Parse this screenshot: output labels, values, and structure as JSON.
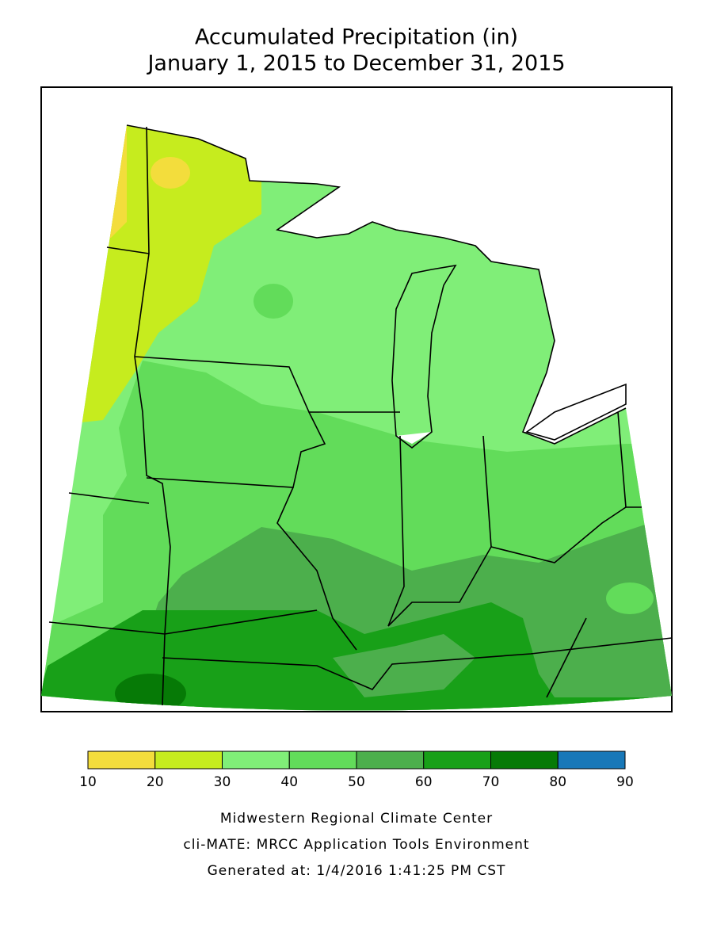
{
  "header": {
    "title": "Accumulated Precipitation (in)",
    "subtitle": "January 1, 2015 to December 31, 2015"
  },
  "legend": {
    "bins": [
      10,
      20,
      30,
      40,
      50,
      60,
      70,
      80,
      90
    ],
    "colors": [
      "#f3dd3c",
      "#c6ec1e",
      "#80ee78",
      "#62dc5a",
      "#4caf4c",
      "#18a018",
      "#067a06",
      "#1878b8"
    ]
  },
  "footer": {
    "lines": [
      "Midwestern Regional Climate Center",
      "cli-MATE: MRCC Application Tools Environment",
      "Generated at: 1/4/2016 1:41:25 PM CST"
    ]
  }
}
